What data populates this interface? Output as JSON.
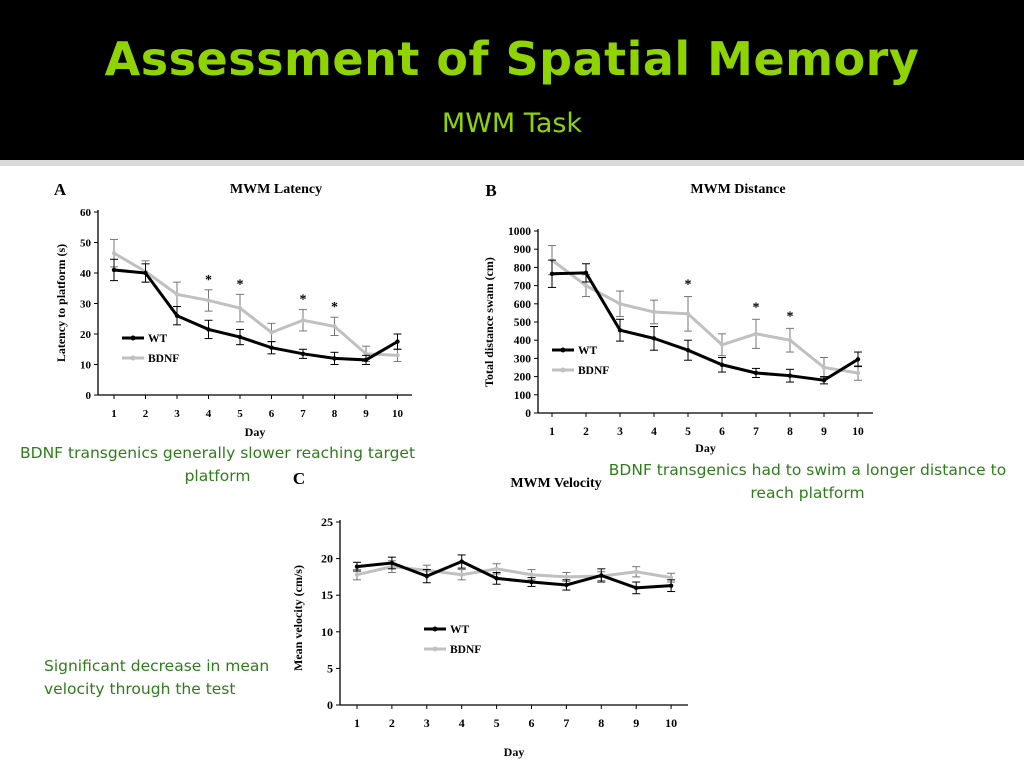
{
  "slide": {
    "title": "Assessment of Spatial Memory",
    "subtitle": "MWM Task",
    "captions": {
      "latency": "BDNF transgenics generally slower reaching target platform",
      "distance": "BDNF transgenics had to swim a longer distance to reach platform",
      "velocity": "Significant decrease in mean velocity through the test"
    }
  },
  "colors": {
    "wt": "#000000",
    "bdnf": "#c0c0c0",
    "accent": "#8fd400",
    "caption": "#2e7d1b"
  },
  "chart_data": [
    {
      "panel": "A",
      "type": "line",
      "title": "MWM Latency",
      "xlabel": "Day",
      "ylabel": "Latency to platform (s)",
      "x": [
        1,
        2,
        3,
        4,
        5,
        6,
        7,
        8,
        9,
        10
      ],
      "ylim": [
        0,
        60
      ],
      "yticks": [
        0,
        10,
        20,
        30,
        40,
        50,
        60
      ],
      "grid": false,
      "legend": "left",
      "series": [
        {
          "name": "WT",
          "values": [
            41,
            40,
            26,
            21.5,
            19,
            15.5,
            13.5,
            12,
            11.5,
            17.5
          ],
          "errors": [
            3.5,
            3,
            3,
            3,
            2.5,
            2,
            1.5,
            2,
            1.5,
            2.5
          ]
        },
        {
          "name": "BDNF",
          "values": [
            46.5,
            40.5,
            33,
            31,
            28.5,
            20.5,
            24.5,
            22.5,
            13.5,
            13
          ],
          "errors": [
            4.5,
            3.5,
            4,
            3.5,
            4.5,
            3,
            3.5,
            3,
            2.5,
            2
          ]
        }
      ],
      "significance": [
        4,
        5,
        7,
        8
      ],
      "significance_mark": "*"
    },
    {
      "panel": "B",
      "type": "line",
      "title": "MWM Distance",
      "xlabel": "Day",
      "ylabel": "Total distance swam (cm)",
      "x": [
        1,
        2,
        3,
        4,
        5,
        6,
        7,
        8,
        9,
        10
      ],
      "ylim": [
        0,
        1000
      ],
      "yticks": [
        0,
        100,
        200,
        300,
        400,
        500,
        600,
        700,
        800,
        900,
        1000
      ],
      "grid": false,
      "legend": "left",
      "series": [
        {
          "name": "WT",
          "values": [
            765,
            770,
            455,
            410,
            345,
            265,
            220,
            205,
            180,
            295
          ],
          "errors": [
            75,
            50,
            60,
            65,
            55,
            40,
            25,
            35,
            20,
            40
          ]
        },
        {
          "name": "BDNF",
          "values": [
            840,
            700,
            600,
            555,
            545,
            375,
            435,
            400,
            250,
            220
          ],
          "errors": [
            80,
            60,
            70,
            65,
            95,
            60,
            80,
            65,
            55,
            40
          ]
        }
      ],
      "significance": [
        5,
        7,
        8
      ],
      "significance_mark": "*"
    },
    {
      "panel": "C",
      "type": "line",
      "title": "MWM Velocity",
      "xlabel": "Day",
      "ylabel": "Mean velocity (cm/s)",
      "x": [
        1,
        2,
        3,
        4,
        5,
        6,
        7,
        8,
        9,
        10
      ],
      "ylim": [
        0,
        25
      ],
      "yticks": [
        0,
        5,
        10,
        15,
        20,
        25
      ],
      "grid": false,
      "legend": "center-left",
      "series": [
        {
          "name": "WT",
          "values": [
            18.9,
            19.4,
            17.6,
            19.6,
            17.3,
            16.8,
            16.4,
            17.7,
            16,
            16.3
          ],
          "errors": [
            0.6,
            0.8,
            0.9,
            0.9,
            0.8,
            0.6,
            0.7,
            0.9,
            0.8,
            0.8
          ]
        },
        {
          "name": "BDNF",
          "values": [
            17.8,
            18.9,
            18.4,
            17.8,
            18.6,
            17.8,
            17.5,
            17.6,
            18.2,
            17.4
          ],
          "errors": [
            0.7,
            0.8,
            0.7,
            0.7,
            0.7,
            0.7,
            0.6,
            0.6,
            0.7,
            0.6
          ]
        }
      ],
      "significance": [],
      "significance_mark": "*"
    }
  ]
}
